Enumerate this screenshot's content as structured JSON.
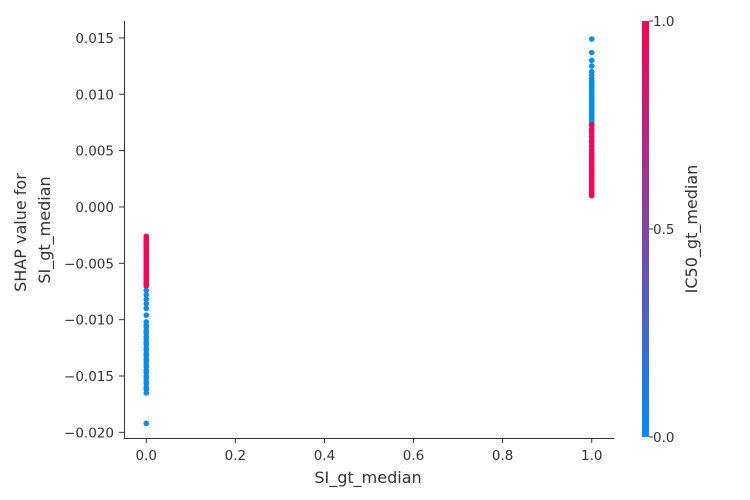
{
  "chart_data": {
    "type": "scatter",
    "title": "",
    "xlabel": "SI_gt_median",
    "ylabel_lines": [
      "SHAP value for",
      "SI_gt_median"
    ],
    "xlim": [
      -0.05,
      1.05
    ],
    "ylim": [
      -0.0205,
      0.0165
    ],
    "x_ticks": [
      0.0,
      0.2,
      0.4,
      0.6,
      0.8,
      1.0
    ],
    "x_tick_labels": [
      "0.0",
      "0.2",
      "0.4",
      "0.6",
      "0.8",
      "1.0"
    ],
    "y_ticks": [
      0.015,
      0.01,
      0.005,
      0.0,
      -0.005,
      -0.01,
      -0.015,
      -0.02
    ],
    "y_tick_labels": [
      "0.015",
      "0.010",
      "0.005",
      "0.000",
      "−0.005",
      "−0.010",
      "−0.015",
      "−0.020"
    ],
    "grid": false,
    "colorbar": {
      "label": "IC50_gt_median",
      "range": [
        0.0,
        1.0
      ],
      "ticks": [
        0.0,
        0.5,
        1.0
      ],
      "tick_labels": [
        "0.0",
        "0.5",
        "1.0"
      ],
      "low_color": "#008bfb",
      "high_color": "#ff0052"
    },
    "series": [
      {
        "color_value": 0,
        "color": "#008bfb",
        "points": [
          [
            0,
            -0.0192
          ],
          [
            0,
            -0.0165
          ],
          [
            0,
            -0.0162
          ],
          [
            0,
            -0.016
          ],
          [
            0,
            -0.0157
          ],
          [
            0,
            -0.0155
          ],
          [
            0,
            -0.0152
          ],
          [
            0,
            -0.015
          ],
          [
            0,
            -0.0147
          ],
          [
            0,
            -0.0145
          ],
          [
            0,
            -0.0142
          ],
          [
            0,
            -0.014
          ],
          [
            0,
            -0.0137
          ],
          [
            0,
            -0.0135
          ],
          [
            0,
            -0.0132
          ],
          [
            0,
            -0.013
          ],
          [
            0,
            -0.0127
          ],
          [
            0,
            -0.0125
          ],
          [
            0,
            -0.0122
          ],
          [
            0,
            -0.012
          ],
          [
            0,
            -0.0117
          ],
          [
            0,
            -0.0115
          ],
          [
            0,
            -0.0112
          ],
          [
            0,
            -0.011
          ],
          [
            0,
            -0.0107
          ],
          [
            0,
            -0.0105
          ],
          [
            0,
            -0.0102
          ],
          [
            0,
            -0.0096
          ],
          [
            0,
            -0.009
          ],
          [
            0,
            -0.0086
          ],
          [
            0,
            -0.0082
          ],
          [
            0,
            -0.0078
          ],
          [
            0,
            -0.0074
          ],
          [
            1,
            0.0149
          ],
          [
            1,
            0.0137
          ],
          [
            1,
            0.013
          ],
          [
            1,
            0.0125
          ],
          [
            1,
            0.012
          ],
          [
            1,
            0.0117
          ],
          [
            1,
            0.0114
          ],
          [
            1,
            0.0112
          ],
          [
            1,
            0.011
          ],
          [
            1,
            0.0108
          ],
          [
            1,
            0.0106
          ],
          [
            1,
            0.0104
          ],
          [
            1,
            0.0102
          ],
          [
            1,
            0.01
          ],
          [
            1,
            0.0098
          ],
          [
            1,
            0.0096
          ],
          [
            1,
            0.0094
          ],
          [
            1,
            0.0092
          ],
          [
            1,
            0.009
          ],
          [
            1,
            0.0088
          ],
          [
            1,
            0.0086
          ],
          [
            1,
            0.0084
          ],
          [
            1,
            0.0082
          ],
          [
            1,
            0.008
          ],
          [
            1,
            0.0078
          ],
          [
            1,
            0.0076
          ],
          [
            1,
            0.0074
          ],
          [
            1,
            0.0072
          ],
          [
            1,
            0.0068
          ],
          [
            1,
            0.0064
          ],
          [
            1,
            0.006
          ],
          [
            1,
            0.0056
          ],
          [
            1,
            0.0052
          ]
        ]
      },
      {
        "color_value": 1,
        "color": "#ff0052",
        "points": [
          [
            0,
            -0.0026
          ],
          [
            0,
            -0.0028
          ],
          [
            0,
            -0.003
          ],
          [
            0,
            -0.0032
          ],
          [
            0,
            -0.0034
          ],
          [
            0,
            -0.0036
          ],
          [
            0,
            -0.0038
          ],
          [
            0,
            -0.004
          ],
          [
            0,
            -0.0042
          ],
          [
            0,
            -0.0044
          ],
          [
            0,
            -0.0046
          ],
          [
            0,
            -0.0048
          ],
          [
            0,
            -0.005
          ],
          [
            0,
            -0.0052
          ],
          [
            0,
            -0.0054
          ],
          [
            0,
            -0.0056
          ],
          [
            0,
            -0.0058
          ],
          [
            0,
            -0.006
          ],
          [
            0,
            -0.0062
          ],
          [
            0,
            -0.0064
          ],
          [
            0,
            -0.0066
          ],
          [
            0,
            -0.0068
          ],
          [
            0,
            -0.007
          ],
          [
            1,
            0.0073
          ],
          [
            1,
            0.0069
          ],
          [
            1,
            0.0066
          ],
          [
            1,
            0.0062
          ],
          [
            1,
            0.0058
          ],
          [
            1,
            0.0054
          ],
          [
            1,
            0.005
          ],
          [
            1,
            0.0048
          ],
          [
            1,
            0.0046
          ],
          [
            1,
            0.0044
          ],
          [
            1,
            0.0042
          ],
          [
            1,
            0.004
          ],
          [
            1,
            0.0038
          ],
          [
            1,
            0.0036
          ],
          [
            1,
            0.0034
          ],
          [
            1,
            0.0032
          ],
          [
            1,
            0.003
          ],
          [
            1,
            0.0028
          ],
          [
            1,
            0.0026
          ],
          [
            1,
            0.0024
          ],
          [
            1,
            0.0022
          ],
          [
            1,
            0.002
          ],
          [
            1,
            0.0018
          ],
          [
            1,
            0.0016
          ],
          [
            1,
            0.0014
          ],
          [
            1,
            0.0012
          ],
          [
            1,
            0.001
          ]
        ]
      }
    ]
  }
}
